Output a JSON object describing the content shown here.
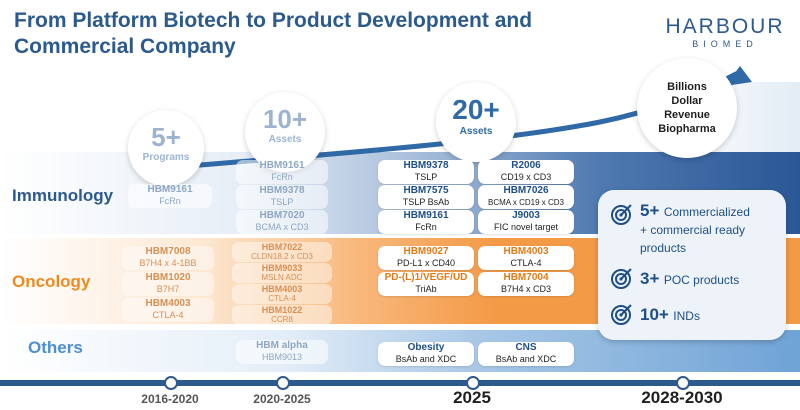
{
  "title": "From Platform Biotech to Product Development and Commercial Company",
  "logo": {
    "main": "HARBOUR",
    "sub": "BIOMED"
  },
  "categories": {
    "immunology": "Immunology",
    "oncology": "Oncology",
    "others": "Others"
  },
  "bubbles": {
    "b1": {
      "big": "5+",
      "small": "Programs"
    },
    "b2": {
      "big": "10+",
      "small": "Assets"
    },
    "b3": {
      "big": "20+",
      "small": "Assets"
    },
    "b4": {
      "line1": "Billions",
      "line2": "Dollar",
      "line3": "Revenue",
      "line4": "Biopharma"
    }
  },
  "col2016": {
    "imm": [
      {
        "name": "HBM9161",
        "desc": "FcRn"
      }
    ],
    "onc": [
      {
        "name": "HBM7008",
        "desc": "B7H4 x 4-1BB"
      },
      {
        "name": "HBM1020",
        "desc": "B7H7"
      },
      {
        "name": "HBM4003",
        "desc": "CTLA-4"
      }
    ]
  },
  "col2020": {
    "imm": [
      {
        "name": "HBM9161",
        "desc": "FcRn"
      },
      {
        "name": "HBM9378",
        "desc": "TSLP"
      },
      {
        "name": "HBM7020",
        "desc": "BCMA x CD3"
      }
    ],
    "onc": [
      {
        "name": "HBM7022",
        "desc": "CLDN18.2 x CD3"
      },
      {
        "name": "HBM9033",
        "desc": "MSLN ADC"
      },
      {
        "name": "HBM4003",
        "desc": "CTLA-4"
      },
      {
        "name": "HBM1022",
        "desc": "CCR8"
      }
    ],
    "oth": [
      {
        "name": "HBM alpha",
        "desc": "HBM9013"
      }
    ]
  },
  "col2025a": {
    "imm": [
      {
        "name": "HBM9378",
        "desc": "TSLP"
      },
      {
        "name": "HBM7575",
        "desc": "TSLP BsAb"
      },
      {
        "name": "HBM9161",
        "desc": "FcRn"
      }
    ],
    "onc": [
      {
        "name": "HBM9027",
        "desc": "PD-L1 x CD40"
      },
      {
        "name": "PD-(L)1/VEGF/UD",
        "desc": "TriAb"
      }
    ],
    "oth": [
      {
        "name": "Obesity",
        "desc": "BsAb and XDC"
      }
    ]
  },
  "col2025b": {
    "imm": [
      {
        "name": "R2006",
        "desc": "CD19 x CD3"
      },
      {
        "name": "HBM7026",
        "desc": "BCMA x CD19 x CD3"
      },
      {
        "name": "J9003",
        "desc": "FIC novel target"
      }
    ],
    "onc": [
      {
        "name": "HBM4003",
        "desc": "CTLA-4"
      },
      {
        "name": "HBM7004",
        "desc": "B7H4 x CD3"
      }
    ],
    "oth": [
      {
        "name": "CNS",
        "desc": "BsAb and XDC"
      }
    ]
  },
  "milestones": [
    {
      "num": "5+",
      "label": "Commercialized",
      "label2": "+ commercial ready",
      "label3": "products"
    },
    {
      "num": "3+",
      "label": "POC products"
    },
    {
      "num": "10+",
      "label": "INDs"
    }
  ],
  "timeline": [
    "2016-2020",
    "2020-2025",
    "2025",
    "2028-2030"
  ],
  "colors": {
    "navy": "#2c5a8c",
    "orange": "#ef8a1f",
    "lightblue": "#4e8fd1"
  }
}
